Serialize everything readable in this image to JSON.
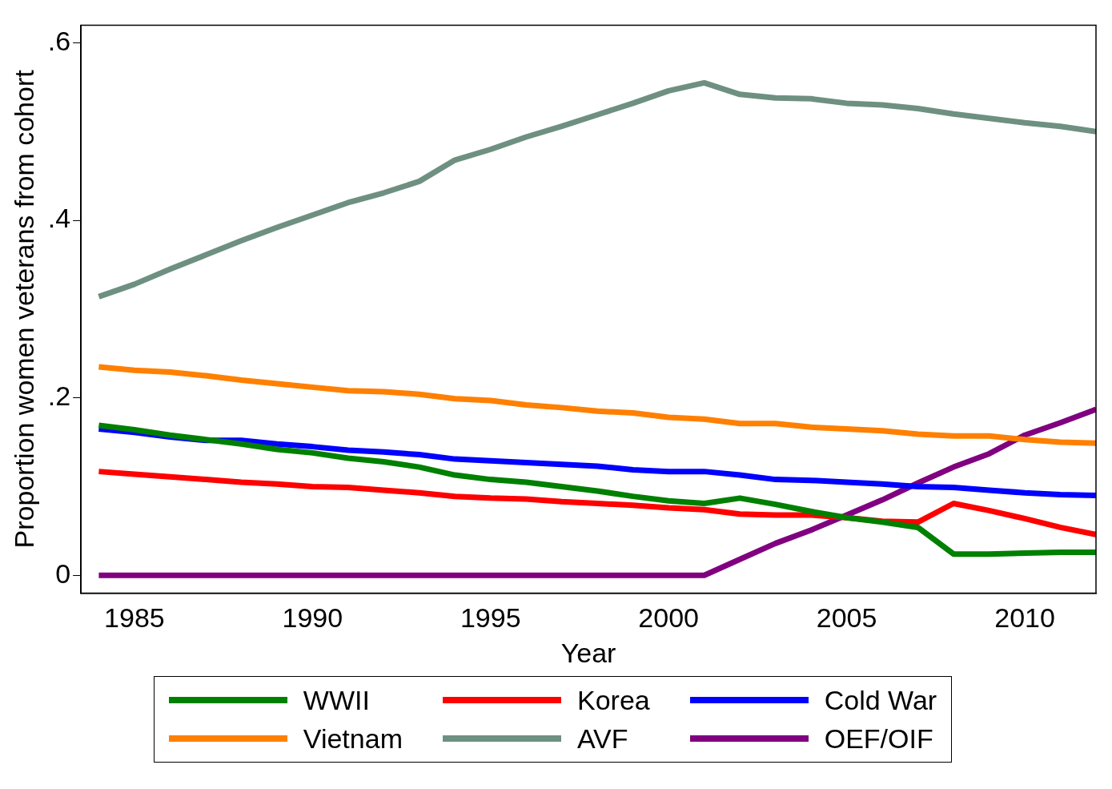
{
  "chart_data": {
    "type": "line",
    "xlabel": "Year",
    "ylabel": "Proportion women veterans from cohort",
    "x": [
      1984,
      1985,
      1986,
      1987,
      1988,
      1989,
      1990,
      1991,
      1992,
      1993,
      1994,
      1995,
      1996,
      1997,
      1998,
      1999,
      2000,
      2001,
      2002,
      2003,
      2004,
      2005,
      2006,
      2007,
      2008,
      2009,
      2010,
      2011,
      2012
    ],
    "series": [
      {
        "name": "WWII",
        "color": "#008000",
        "values": [
          0.169,
          0.164,
          0.158,
          0.153,
          0.148,
          0.142,
          0.138,
          0.132,
          0.128,
          0.122,
          0.113,
          0.108,
          0.105,
          0.1,
          0.095,
          0.089,
          0.084,
          0.081,
          0.087,
          0.08,
          0.072,
          0.065,
          0.06,
          0.054,
          0.024,
          0.024,
          0.025,
          0.026,
          0.026
        ]
      },
      {
        "name": "Korea",
        "color": "#ff0000",
        "values": [
          0.117,
          0.114,
          0.111,
          0.108,
          0.105,
          0.103,
          0.1,
          0.099,
          0.096,
          0.093,
          0.089,
          0.087,
          0.086,
          0.083,
          0.081,
          0.079,
          0.076,
          0.074,
          0.069,
          0.068,
          0.068,
          0.065,
          0.061,
          0.06,
          0.081,
          0.073,
          0.064,
          0.054,
          0.046
        ]
      },
      {
        "name": "Cold War",
        "color": "#0000ff",
        "values": [
          0.165,
          0.161,
          0.156,
          0.152,
          0.152,
          0.148,
          0.145,
          0.141,
          0.139,
          0.136,
          0.131,
          0.129,
          0.127,
          0.125,
          0.123,
          0.119,
          0.117,
          0.117,
          0.113,
          0.108,
          0.107,
          0.105,
          0.103,
          0.1,
          0.099,
          0.096,
          0.093,
          0.091,
          0.09
        ]
      },
      {
        "name": "Vietnam",
        "color": "#ff8000",
        "values": [
          0.235,
          0.231,
          0.229,
          0.225,
          0.22,
          0.216,
          0.212,
          0.208,
          0.207,
          0.204,
          0.199,
          0.197,
          0.192,
          0.189,
          0.185,
          0.183,
          0.178,
          0.176,
          0.171,
          0.171,
          0.167,
          0.165,
          0.163,
          0.159,
          0.157,
          0.157,
          0.153,
          0.15,
          0.149
        ]
      },
      {
        "name": "AVF",
        "color": "#6e9080",
        "values": [
          0.314,
          0.328,
          0.345,
          0.361,
          0.377,
          0.392,
          0.406,
          0.42,
          0.431,
          0.444,
          0.468,
          0.48,
          0.494,
          0.506,
          0.519,
          0.532,
          0.546,
          0.555,
          0.542,
          0.538,
          0.537,
          0.532,
          0.53,
          0.526,
          0.52,
          0.515,
          0.51,
          0.506,
          0.5
        ]
      },
      {
        "name": "OEF/OIF",
        "color": "#800080",
        "values": [
          0,
          0,
          0,
          0,
          0,
          0,
          0,
          0,
          0,
          0,
          0,
          0,
          0,
          0,
          0,
          0,
          0,
          0,
          0.018,
          0.036,
          0.051,
          0.068,
          0.085,
          0.104,
          0.122,
          0.137,
          0.158,
          0.172,
          0.187
        ]
      }
    ],
    "xlim": [
      1983.5,
      2012
    ],
    "xticks": [
      1985,
      1990,
      1995,
      2000,
      2005,
      2010
    ],
    "ylim": [
      -0.02,
      0.62
    ],
    "yticks": [
      0,
      {
        "value": 0.2,
        "label": ".2"
      },
      {
        "value": 0.4,
        "label": ".4"
      },
      {
        "value": 0.6,
        "label": ".6"
      }
    ],
    "grid": false,
    "legend": "bottom",
    "marker": "none",
    "line_style": "solid"
  }
}
